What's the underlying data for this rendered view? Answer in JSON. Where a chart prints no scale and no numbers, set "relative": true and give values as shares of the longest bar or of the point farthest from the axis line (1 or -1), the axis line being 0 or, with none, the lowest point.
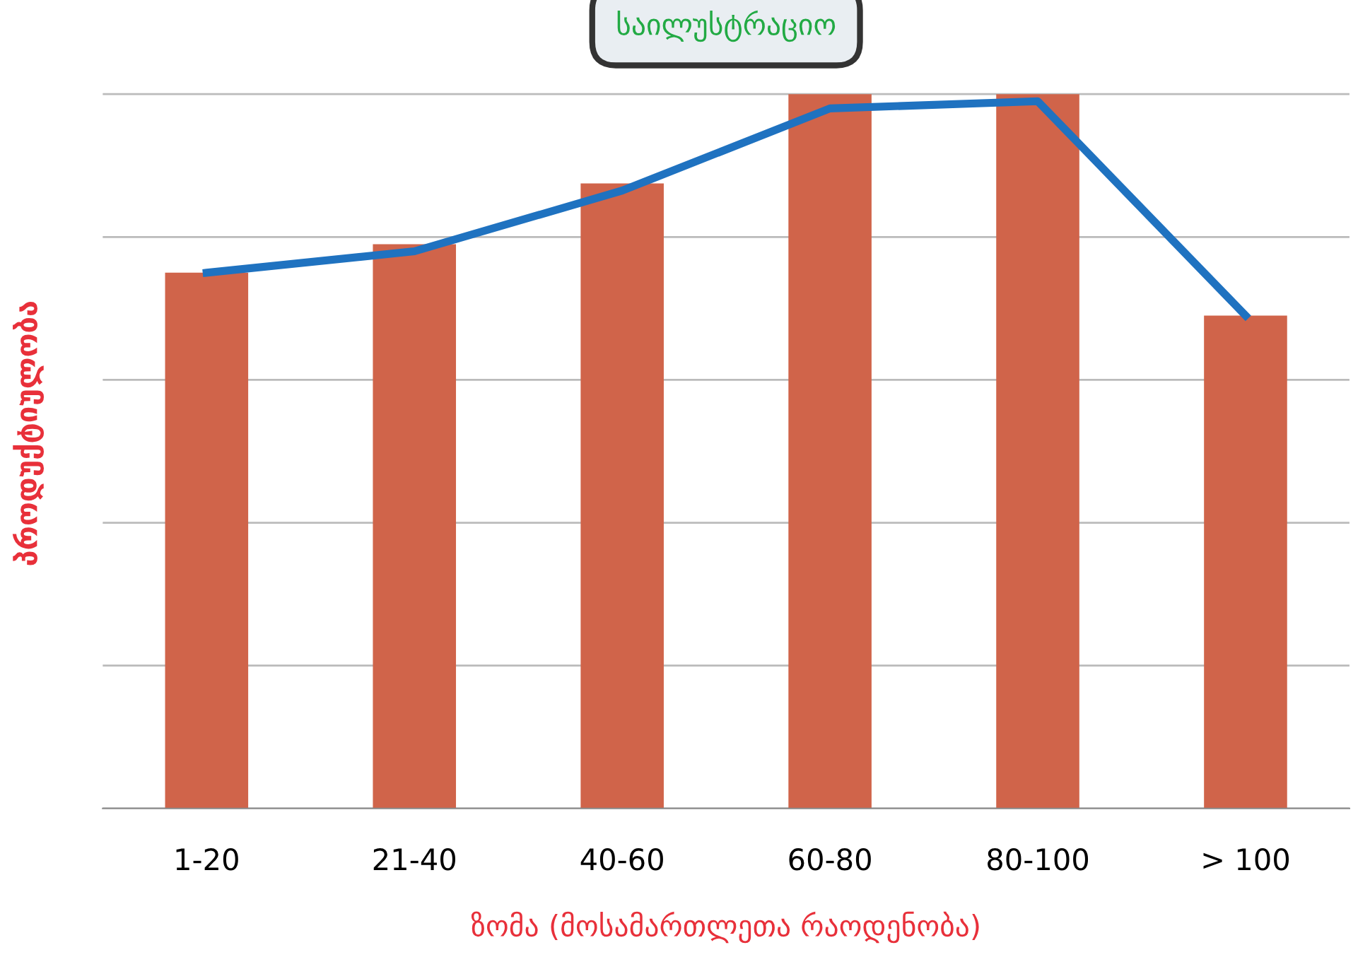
{
  "chart_data": {
    "type": "bar",
    "title": "საილუსტრაციო",
    "xlabel": "ზომა (მოსამართლეთა რაოდენობა)",
    "ylabel": "პროდუქტიულობა",
    "relative": true,
    "grid": "y",
    "legend": false,
    "categories": [
      "1-20",
      "21-40",
      "40-60",
      "60-80",
      "80-100",
      "> 100"
    ],
    "series": [
      {
        "color": "#d0644a",
        "values": [
          0.75,
          0.79,
          0.875,
          1,
          1,
          0.69
        ]
      },
      {
        "type": "line",
        "color": "#1f72c0",
        "values": [
          0.75,
          0.78,
          0.865,
          0.98,
          0.99,
          0.69
        ]
      }
    ]
  }
}
